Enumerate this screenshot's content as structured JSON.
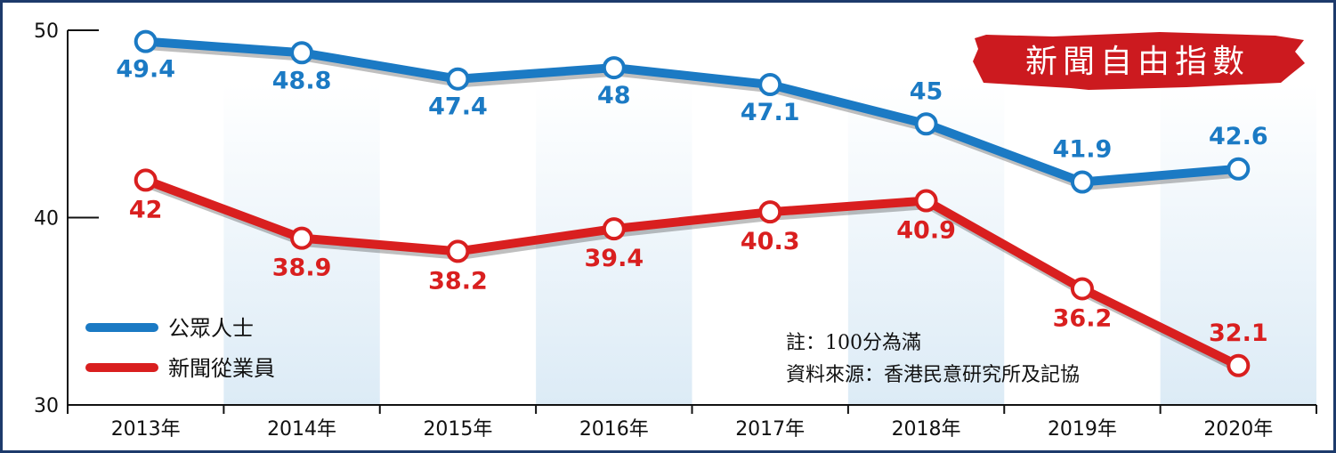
{
  "chart_data": {
    "type": "line",
    "title": "新聞自由指數",
    "categories": [
      "2013年",
      "2014年",
      "2015年",
      "2016年",
      "2017年",
      "2018年",
      "2019年",
      "2020年"
    ],
    "series": [
      {
        "name": "公眾人士",
        "color": "#1b7ac4",
        "values": [
          49.4,
          48.8,
          47.4,
          48,
          47.1,
          45,
          41.9,
          42.6
        ]
      },
      {
        "name": "新聞從業員",
        "color": "#d91f1f",
        "values": [
          42,
          38.9,
          38.2,
          39.4,
          40.3,
          40.9,
          36.2,
          32.1
        ]
      }
    ],
    "ylim": [
      30,
      50
    ],
    "yticks": [
      "30",
      "40",
      "50"
    ],
    "notes": [
      "註：100分為滿",
      "資料來源：香港民意研究所及記協"
    ],
    "legend_position": "bottom-left"
  }
}
